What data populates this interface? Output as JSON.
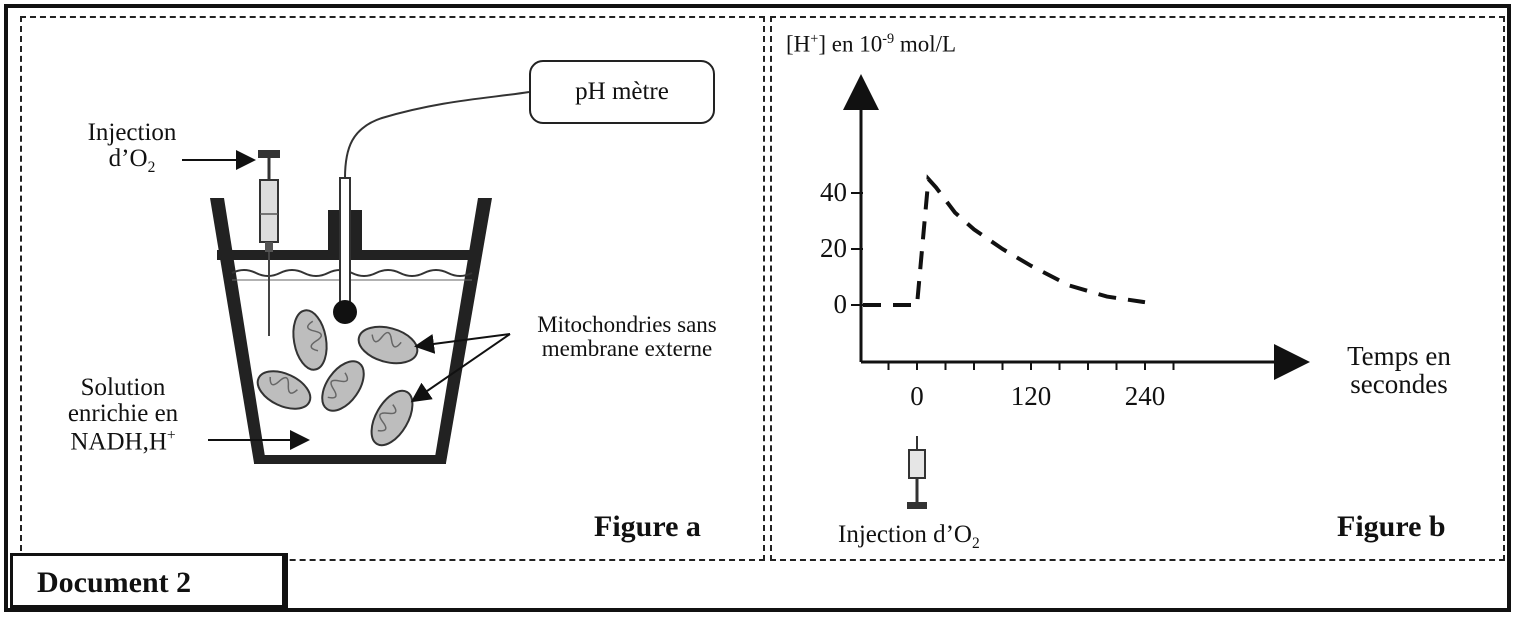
{
  "document": {
    "label": "Document 2"
  },
  "figure_a": {
    "label": "Figure a",
    "ph_meter": "pH mètre",
    "injection_line1": "Injection",
    "injection_line2_pre": "d’O",
    "injection_line2_sub": "2",
    "mito_line1": "Mitochondries sans",
    "mito_line2": "membrane externe",
    "solution_line1": "Solution",
    "solution_line2": "enrichie en",
    "solution_line3_pre": "NADH,H",
    "solution_line3_sup": "+"
  },
  "figure_b": {
    "label": "Figure b",
    "ylabel_pre": "[H",
    "ylabel_sup": "+",
    "ylabel_mid": "] en 10",
    "ylabel_exp": "-9",
    "ylabel_post": " mol/L",
    "xlabel_line1": "Temps en",
    "xlabel_line2": "secondes",
    "injection_pre": "Injection d’O",
    "injection_sub": "2"
  },
  "chart_data": {
    "type": "line",
    "ylabel": "[H+] en 10-9 mol/L",
    "xlabel": "Temps en secondes",
    "x_ticks": [
      0,
      120,
      240
    ],
    "y_ticks": [
      0,
      20,
      40
    ],
    "series": [
      {
        "style": "dashed",
        "x": [
          -80,
          0,
          12,
          20,
          40,
          60,
          90,
          120,
          160,
          200,
          240
        ],
        "y": [
          0,
          0,
          45,
          42,
          33,
          27,
          20,
          14,
          7,
          3,
          1
        ]
      }
    ]
  }
}
